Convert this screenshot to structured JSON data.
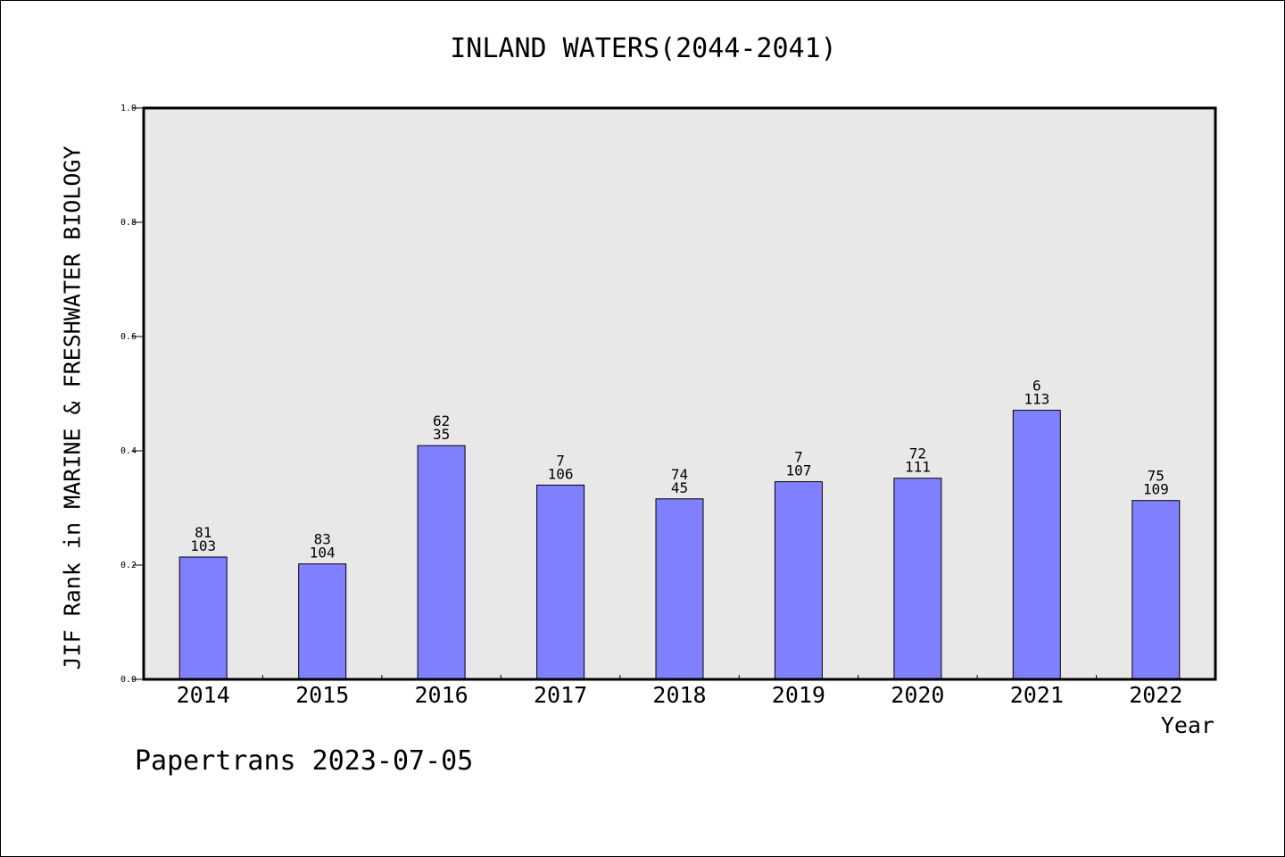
{
  "chart_data": {
    "type": "bar",
    "title": "INLAND WATERS(2044-2041)",
    "xlabel": "Year",
    "ylabel": "JIF Rank in MARINE & FRESHWATER BIOLOGY",
    "ylim": [
      0,
      1.0
    ],
    "yticks": [
      "0.0",
      "0.2",
      "0.4",
      "0.6",
      "0.8",
      "1.0"
    ],
    "categories": [
      "2014",
      "2015",
      "2016",
      "2017",
      "2018",
      "2019",
      "2020",
      "2021",
      "2022"
    ],
    "values": [
      0.214,
      0.202,
      0.409,
      0.34,
      0.316,
      0.346,
      0.352,
      0.471,
      0.313
    ],
    "label_top": [
      "81",
      "83",
      "62",
      "7",
      "74",
      "7",
      "72",
      "6",
      "75"
    ],
    "label_bottom": [
      "103",
      "104",
      "35",
      "106",
      "45",
      "107",
      "111",
      "113",
      "109"
    ],
    "grid": false,
    "legend": "none",
    "colors": {
      "bar": "#8080ff",
      "plot_background": "#e8e8e8",
      "frame": "#000000"
    }
  },
  "footer": "Papertrans 2023-07-05"
}
